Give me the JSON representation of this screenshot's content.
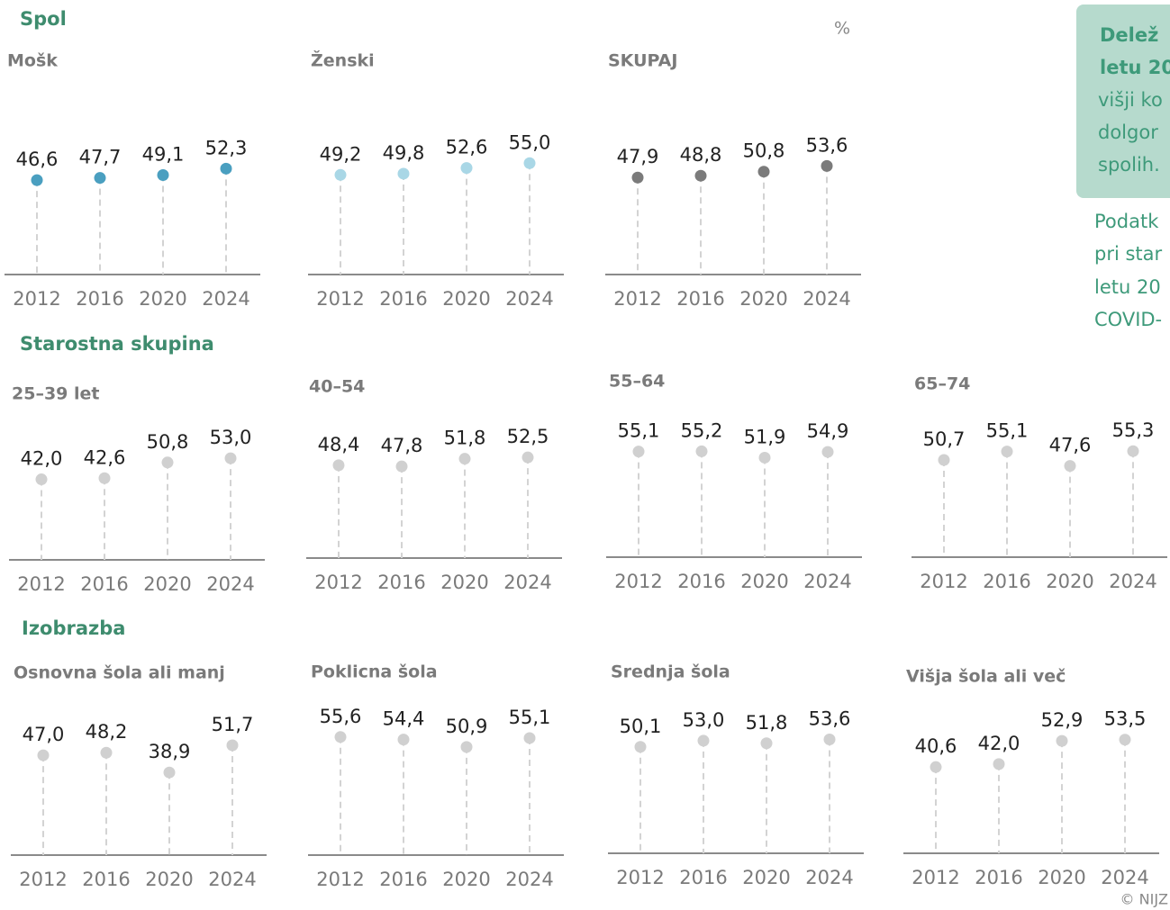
{
  "sections": [
    "Spol",
    "Starostna skupina",
    "Izobrazba"
  ],
  "unit": "%",
  "copyright": "© NIJZ",
  "box_lines": [
    "Delež",
    "letu 20",
    "višji ko",
    "dolgor",
    "spolih."
  ],
  "note_lines": [
    "Podatk",
    "pri star",
    "letu 20",
    "COVID-"
  ],
  "chart_data": [
    {
      "type": "lollipop",
      "title": "Mošk",
      "categories": [
        "2012",
        "2016",
        "2020",
        "2024"
      ],
      "values": [
        46.6,
        47.7,
        49.1,
        52.3
      ],
      "value_labels": [
        "46,6",
        "47,7",
        "49,1",
        "52,3"
      ],
      "color": "#4a9fc0",
      "ylim": [
        0,
        100
      ]
    },
    {
      "type": "lollipop",
      "title": "Ženski",
      "categories": [
        "2012",
        "2016",
        "2020",
        "2024"
      ],
      "values": [
        49.2,
        49.8,
        52.6,
        55.0
      ],
      "value_labels": [
        "49,2",
        "49,8",
        "52,6",
        "55,0"
      ],
      "color": "#a9d7e6",
      "ylim": [
        0,
        100
      ]
    },
    {
      "type": "lollipop",
      "title": "SKUPAJ",
      "categories": [
        "2012",
        "2016",
        "2020",
        "2024"
      ],
      "values": [
        47.9,
        48.8,
        50.8,
        53.6
      ],
      "value_labels": [
        "47,9",
        "48,8",
        "50,8",
        "53,6"
      ],
      "color": "#7b7b7b",
      "ylim": [
        0,
        100
      ]
    },
    {
      "type": "lollipop",
      "title": "25–39 let",
      "categories": [
        "2012",
        "2016",
        "2020",
        "2024"
      ],
      "values": [
        42.0,
        42.6,
        50.8,
        53.0
      ],
      "value_labels": [
        "42,0",
        "42,6",
        "50,8",
        "53,0"
      ],
      "color": "#d0d0d0",
      "ylim": [
        0,
        100
      ]
    },
    {
      "type": "lollipop",
      "title": "40–54",
      "categories": [
        "2012",
        "2016",
        "2020",
        "2024"
      ],
      "values": [
        48.4,
        47.8,
        51.8,
        52.5
      ],
      "value_labels": [
        "48,4",
        "47,8",
        "51,8",
        "52,5"
      ],
      "color": "#d0d0d0",
      "ylim": [
        0,
        100
      ]
    },
    {
      "type": "lollipop",
      "title": "55–64",
      "categories": [
        "2012",
        "2016",
        "2020",
        "2024"
      ],
      "values": [
        55.1,
        55.2,
        51.9,
        54.9
      ],
      "value_labels": [
        "55,1",
        "55,2",
        "51,9",
        "54,9"
      ],
      "color": "#d0d0d0",
      "ylim": [
        0,
        100
      ]
    },
    {
      "type": "lollipop",
      "title": "65–74",
      "categories": [
        "2012",
        "2016",
        "2020",
        "2024"
      ],
      "values": [
        50.7,
        55.1,
        47.6,
        55.3
      ],
      "value_labels": [
        "50,7",
        "55,1",
        "47,6",
        "55,3"
      ],
      "color": "#d0d0d0",
      "ylim": [
        0,
        100
      ]
    },
    {
      "type": "lollipop",
      "title": "Osnovna šola ali manj",
      "categories": [
        "2012",
        "2016",
        "2020",
        "2024"
      ],
      "values": [
        47.0,
        48.2,
        38.9,
        51.7
      ],
      "value_labels": [
        "47,0",
        "48,2",
        "38,9",
        "51,7"
      ],
      "color": "#d0d0d0",
      "ylim": [
        0,
        100
      ]
    },
    {
      "type": "lollipop",
      "title": "Poklicna šola",
      "categories": [
        "2012",
        "2016",
        "2020",
        "2024"
      ],
      "values": [
        55.6,
        54.4,
        50.9,
        55.1
      ],
      "value_labels": [
        "55,6",
        "54,4",
        "50,9",
        "55,1"
      ],
      "color": "#d0d0d0",
      "ylim": [
        0,
        100
      ]
    },
    {
      "type": "lollipop",
      "title": "Srednja šola",
      "categories": [
        "2012",
        "2016",
        "2020",
        "2024"
      ],
      "values": [
        50.1,
        53.0,
        51.8,
        53.6
      ],
      "value_labels": [
        "50,1",
        "53,0",
        "51,8",
        "53,6"
      ],
      "color": "#d0d0d0",
      "ylim": [
        0,
        100
      ]
    },
    {
      "type": "lollipop",
      "title": "Višja šola ali več",
      "categories": [
        "2012",
        "2016",
        "2020",
        "2024"
      ],
      "values": [
        40.6,
        42.0,
        52.9,
        53.5
      ],
      "value_labels": [
        "40,6",
        "42,0",
        "52,9",
        "53,5"
      ],
      "color": "#d0d0d0",
      "ylim": [
        0,
        100
      ]
    }
  ]
}
